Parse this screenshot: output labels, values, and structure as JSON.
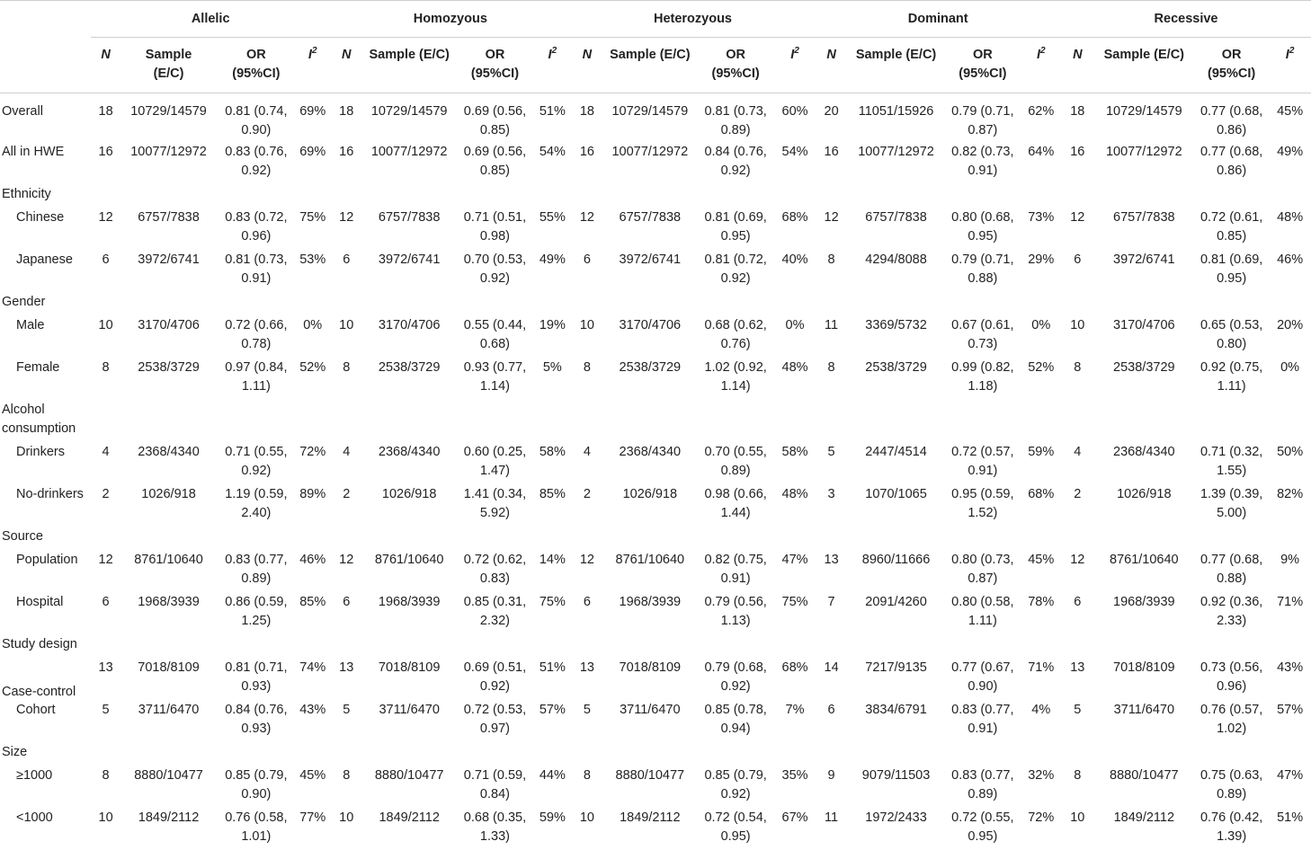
{
  "groups": [
    "Allelic",
    "Homozyous",
    "Heterozyous",
    "Dominant",
    "Recessive"
  ],
  "subheaders": {
    "n": "N",
    "sample": [
      "Sample",
      "(E/C)"
    ],
    "sample_inline": "Sample (E/C)",
    "or": [
      "OR",
      "(95%CI)"
    ],
    "i2_base": "I",
    "i2_sup": "2"
  },
  "rows": [
    {
      "label": "Overall",
      "type": "row",
      "cells": [
        [
          "18",
          "10729/14579",
          "0.81 (0.74, 0.90)",
          "69%"
        ],
        [
          "18",
          "10729/14579",
          "0.69 (0.56, 0.85)",
          "51%"
        ],
        [
          "18",
          "10729/14579",
          "0.81 (0.73, 0.89)",
          "60%"
        ],
        [
          "20",
          "11051/15926",
          "0.79 (0.71, 0.87)",
          "62%"
        ],
        [
          "18",
          "10729/14579",
          "0.77 (0.68, 0.86)",
          "45%"
        ]
      ]
    },
    {
      "label": "All in HWE",
      "type": "row",
      "cells": [
        [
          "16",
          "10077/12972",
          "0.83 (0.76, 0.92)",
          "69%"
        ],
        [
          "16",
          "10077/12972",
          "0.69 (0.56, 0.85)",
          "54%"
        ],
        [
          "16",
          "10077/12972",
          "0.84 (0.76, 0.92)",
          "54%"
        ],
        [
          "16",
          "10077/12972",
          "0.82 (0.73, 0.91)",
          "64%"
        ],
        [
          "16",
          "10077/12972",
          "0.77 (0.68, 0.86)",
          "49%"
        ]
      ]
    },
    {
      "label": "Ethnicity",
      "type": "section"
    },
    {
      "label": "Chinese",
      "type": "sub",
      "cells": [
        [
          "12",
          "6757/7838",
          "0.83 (0.72, 0.96)",
          "75%"
        ],
        [
          "12",
          "6757/7838",
          "0.71 (0.51, 0.98)",
          "55%"
        ],
        [
          "12",
          "6757/7838",
          "0.81 (0.69, 0.95)",
          "68%"
        ],
        [
          "12",
          "6757/7838",
          "0.80 (0.68, 0.95)",
          "73%"
        ],
        [
          "12",
          "6757/7838",
          "0.72 (0.61, 0.85)",
          "48%"
        ]
      ]
    },
    {
      "label": "Japanese",
      "type": "sub",
      "cells": [
        [
          "6",
          "3972/6741",
          "0.81 (0.73, 0.91)",
          "53%"
        ],
        [
          "6",
          "3972/6741",
          "0.70 (0.53, 0.92)",
          "49%"
        ],
        [
          "6",
          "3972/6741",
          "0.81 (0.72, 0.92)",
          "40%"
        ],
        [
          "8",
          "4294/8088",
          "0.79 (0.71, 0.88)",
          "29%"
        ],
        [
          "6",
          "3972/6741",
          "0.81 (0.69, 0.95)",
          "46%"
        ]
      ]
    },
    {
      "label": "Gender",
      "type": "section"
    },
    {
      "label": "Male",
      "type": "sub",
      "cells": [
        [
          "10",
          "3170/4706",
          "0.72 (0.66, 0.78)",
          "0%"
        ],
        [
          "10",
          "3170/4706",
          "0.55 (0.44, 0.68)",
          "19%"
        ],
        [
          "10",
          "3170/4706",
          "0.68 (0.62, 0.76)",
          "0%"
        ],
        [
          "11",
          "3369/5732",
          "0.67 (0.61, 0.73)",
          "0%"
        ],
        [
          "10",
          "3170/4706",
          "0.65 (0.53, 0.80)",
          "20%"
        ]
      ]
    },
    {
      "label": "Female",
      "type": "sub",
      "cells": [
        [
          "8",
          "2538/3729",
          "0.97 (0.84, 1.11)",
          "52%"
        ],
        [
          "8",
          "2538/3729",
          "0.93 (0.77, 1.14)",
          "5%"
        ],
        [
          "8",
          "2538/3729",
          "1.02 (0.92, 1.14)",
          "48%"
        ],
        [
          "8",
          "2538/3729",
          "0.99 (0.82, 1.18)",
          "52%"
        ],
        [
          "8",
          "2538/3729",
          "0.92 (0.75, 1.11)",
          "0%"
        ]
      ]
    },
    {
      "label": "Alcohol consumption",
      "type": "section2"
    },
    {
      "label": "Drinkers",
      "type": "sub",
      "cells": [
        [
          "4",
          "2368/4340",
          "0.71 (0.55, 0.92)",
          "72%"
        ],
        [
          "4",
          "2368/4340",
          "0.60 (0.25, 1.47)",
          "58%"
        ],
        [
          "4",
          "2368/4340",
          "0.70 (0.55, 0.89)",
          "58%"
        ],
        [
          "5",
          "2447/4514",
          "0.72 (0.57, 0.91)",
          "59%"
        ],
        [
          "4",
          "2368/4340",
          "0.71 (0.32, 1.55)",
          "50%"
        ]
      ]
    },
    {
      "label": "No-drinkers",
      "type": "sub",
      "cells": [
        [
          "2",
          "1026/918",
          "1.19 (0.59, 2.40)",
          "89%"
        ],
        [
          "2",
          "1026/918",
          "1.41 (0.34, 5.92)",
          "85%"
        ],
        [
          "2",
          "1026/918",
          "0.98 (0.66, 1.44)",
          "48%"
        ],
        [
          "3",
          "1070/1065",
          "0.95 (0.59, 1.52)",
          "68%"
        ],
        [
          "2",
          "1026/918",
          "1.39 (0.39, 5.00)",
          "82%"
        ]
      ]
    },
    {
      "label": "Source",
      "type": "section"
    },
    {
      "label": "Population",
      "type": "sub",
      "cells": [
        [
          "12",
          "8761/10640",
          "0.83 (0.77, 0.89)",
          "46%"
        ],
        [
          "12",
          "8761/10640",
          "0.72 (0.62, 0.83)",
          "14%"
        ],
        [
          "12",
          "8761/10640",
          "0.82 (0.75, 0.91)",
          "47%"
        ],
        [
          "13",
          "8960/11666",
          "0.80 (0.73, 0.87)",
          "45%"
        ],
        [
          "12",
          "8761/10640",
          "0.77 (0.68, 0.88)",
          "9%"
        ]
      ]
    },
    {
      "label": "Hospital",
      "type": "sub",
      "cells": [
        [
          "6",
          "1968/3939",
          "0.86 (0.59, 1.25)",
          "85%"
        ],
        [
          "6",
          "1968/3939",
          "0.85 (0.31, 2.32)",
          "75%"
        ],
        [
          "6",
          "1968/3939",
          "0.79 (0.56, 1.13)",
          "75%"
        ],
        [
          "7",
          "2091/4260",
          "0.80 (0.58, 1.11)",
          "78%"
        ],
        [
          "6",
          "1968/3939",
          "0.92 (0.36, 2.33)",
          "71%"
        ]
      ]
    },
    {
      "label": "Study design",
      "type": "section"
    },
    {
      "label": "Case-control",
      "type": "cc",
      "cells": [
        [
          "13",
          "7018/8109",
          "0.81 (0.71, 0.93)",
          "74%"
        ],
        [
          "13",
          "7018/8109",
          "0.69 (0.51, 0.92)",
          "51%"
        ],
        [
          "13",
          "7018/8109",
          "0.79 (0.68, 0.92)",
          "68%"
        ],
        [
          "14",
          "7217/9135",
          "0.77 (0.67, 0.90)",
          "71%"
        ],
        [
          "13",
          "7018/8109",
          "0.73 (0.56, 0.96)",
          "43%"
        ]
      ]
    },
    {
      "label": "Cohort",
      "type": "sub",
      "cells": [
        [
          "5",
          "3711/6470",
          "0.84 (0.76, 0.93)",
          "43%"
        ],
        [
          "5",
          "3711/6470",
          "0.72 (0.53, 0.97)",
          "57%"
        ],
        [
          "5",
          "3711/6470",
          "0.85 (0.78, 0.94)",
          "7%"
        ],
        [
          "6",
          "3834/6791",
          "0.83 (0.77, 0.91)",
          "4%"
        ],
        [
          "5",
          "3711/6470",
          "0.76 (0.57, 1.02)",
          "57%"
        ]
      ]
    },
    {
      "label": "Size",
      "type": "section"
    },
    {
      "label": "≥1000",
      "type": "sub",
      "cells": [
        [
          "8",
          "8880/10477",
          "0.85 (0.79, 0.90)",
          "45%"
        ],
        [
          "8",
          "8880/10477",
          "0.71 (0.59, 0.84)",
          "44%"
        ],
        [
          "8",
          "8880/10477",
          "0.85 (0.79, 0.92)",
          "35%"
        ],
        [
          "9",
          "9079/11503",
          "0.83 (0.77, 0.89)",
          "32%"
        ],
        [
          "8",
          "8880/10477",
          "0.75 (0.63, 0.89)",
          "47%"
        ]
      ]
    },
    {
      "label": "<1000",
      "type": "sub",
      "cells": [
        [
          "10",
          "1849/2112",
          "0.76 (0.58, 1.01)",
          "77%"
        ],
        [
          "10",
          "1849/2112",
          "0.68 (0.35, 1.33)",
          "59%"
        ],
        [
          "10",
          "1849/2112",
          "0.72 (0.54, 0.95)",
          "67%"
        ],
        [
          "11",
          "1972/2433",
          "0.72 (0.55, 0.95)",
          "72%"
        ],
        [
          "10",
          "1849/2112",
          "0.76 (0.42, 1.39)",
          "51%"
        ]
      ]
    }
  ]
}
